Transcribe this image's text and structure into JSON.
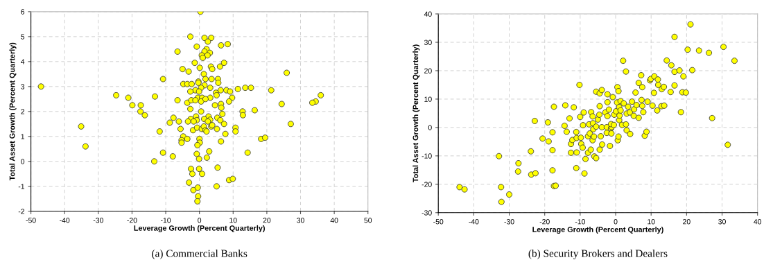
{
  "chart_data": [
    {
      "type": "scatter",
      "xlabel": "Leverage Growth (Percent Quarterly)",
      "ylabel": "Total Asset Growth (Percent Quarterly)",
      "annotations": [
        "(a) Commercial Banks"
      ],
      "xlim": [
        -50,
        50
      ],
      "ylim": [
        -2,
        6
      ],
      "xticks": [
        -50,
        -40,
        -30,
        -20,
        -10,
        0,
        10,
        20,
        30,
        40,
        50
      ],
      "yticks": [
        -2,
        -1,
        0,
        1,
        2,
        3,
        4,
        5,
        6
      ],
      "grid": true,
      "marker": "circle",
      "series": [
        {
          "color": "#ffff00",
          "x": [
            -47,
            0.3,
            -2.7,
            1.5,
            3.5,
            2.5,
            -0.8,
            6.4,
            8.4,
            -6.5,
            2.1,
            1.5,
            3.1,
            0.7,
            2.4,
            1.0,
            -1.4,
            7.3,
            3.4,
            6.1,
            0.1,
            3.8,
            -5.0,
            -3.2,
            1.3,
            -10.8,
            1.8,
            3.6,
            5.5,
            5.6,
            -0.3,
            25.9,
            -4.8,
            -3.6,
            -2.3,
            -0.3,
            1.5,
            0.5,
            3.2,
            -1.2,
            -0.1,
            6.3,
            8.0,
            9.1,
            11.4,
            13.6,
            15.3,
            21.3,
            -24.7,
            -21.1,
            -13.2,
            -2.7,
            4.9,
            5.1,
            -0.5,
            0.8,
            3.2,
            9.7,
            36.0,
            34.5,
            33.5,
            24.4,
            -19.9,
            -17.4,
            -6.5,
            -3.6,
            -2.4,
            -1.2,
            0.5,
            1.8,
            8.8,
            4.6,
            6.4,
            6.5,
            -2.7,
            -17.5,
            -16.2,
            16.4,
            12.8,
            12.9,
            0.5,
            -1.0,
            2.7,
            6.8,
            5.3,
            -7.7,
            -2.6,
            -0.8,
            1.4,
            3.2,
            6.2,
            -6.1,
            -8.8,
            -3.4,
            -1.7,
            2.5,
            7.3,
            27.1,
            -5.6,
            -1.9,
            -0.7,
            0.7,
            1.3,
            1.8,
            3.5,
            5.2,
            2.1,
            3.8,
            10.7,
            10.7,
            7.7,
            -11.8,
            -4.8,
            -3.6,
            -5.3,
            -5.3,
            0.0,
            0.1,
            -0.6,
            6.4,
            18.3,
            19.5,
            -35.1,
            -33.8,
            -10.8,
            14.3,
            -7.9,
            -13.4,
            -0.8,
            -0.1,
            2.9,
            2.2,
            -2.5,
            -2.1,
            -0.1,
            0.8,
            5.4,
            -3.1,
            8.8,
            9.9,
            -1.8,
            -0.5,
            5.1,
            -0.4,
            -0.6
          ],
          "values": [
            3.0,
            6.0,
            5.0,
            4.95,
            4.95,
            4.8,
            4.6,
            4.65,
            4.7,
            4.4,
            4.5,
            4.4,
            4.35,
            4.25,
            4.25,
            4.15,
            3.95,
            3.95,
            3.8,
            3.8,
            3.75,
            3.7,
            3.7,
            3.6,
            3.5,
            3.3,
            3.3,
            3.3,
            3.3,
            3.15,
            3.2,
            3.55,
            3.1,
            3.1,
            3.1,
            3.15,
            3.05,
            2.95,
            2.95,
            2.85,
            2.8,
            2.85,
            2.85,
            2.8,
            2.9,
            2.95,
            2.95,
            2.85,
            2.65,
            2.55,
            2.6,
            2.8,
            2.75,
            2.65,
            2.55,
            2.55,
            2.55,
            2.55,
            2.65,
            2.4,
            2.35,
            2.3,
            2.25,
            2.25,
            2.45,
            2.35,
            2.45,
            2.45,
            2.4,
            2.5,
            2.4,
            2.25,
            2.3,
            2.15,
            2.1,
            2.0,
            1.85,
            2.05,
            2.0,
            1.85,
            2.0,
            1.8,
            1.8,
            1.9,
            1.75,
            1.75,
            1.7,
            1.65,
            1.7,
            1.67,
            1.65,
            1.6,
            1.55,
            1.6,
            1.6,
            1.6,
            1.5,
            1.5,
            1.3,
            1.25,
            1.35,
            1.3,
            1.4,
            1.25,
            1.4,
            1.3,
            1.2,
            1.45,
            1.35,
            1.2,
            1.1,
            1.2,
            1.0,
            0.9,
            0.85,
            0.75,
            0.9,
            0.75,
            0.65,
            0.8,
            0.9,
            0.95,
            1.4,
            0.6,
            0.35,
            0.35,
            0.2,
            0.0,
            0.3,
            0.1,
            0.4,
            0.15,
            -0.3,
            -0.5,
            -0.3,
            -0.5,
            -0.25,
            -0.85,
            -0.75,
            -0.7,
            -1.15,
            -1.05,
            -1.0,
            -1.4,
            -1.6
          ]
        }
      ]
    },
    {
      "type": "scatter",
      "xlabel": "Leverage Growth (Percent Quarterly)",
      "ylabel": "Total Asset Growth (Percent Quarterly)",
      "annotations": [
        "(b) Security Brokers and Dealers"
      ],
      "xlim": [
        -50,
        40
      ],
      "ylim": [
        -30,
        40
      ],
      "xticks": [
        -50,
        -40,
        -30,
        -20,
        -10,
        0,
        10,
        20,
        30,
        40
      ],
      "yticks": [
        -30,
        -20,
        -10,
        0,
        10,
        20,
        30,
        40
      ],
      "grid": true,
      "marker": "circle",
      "series": [
        {
          "color": "#ffff00",
          "x": [
            -44.0,
            -42.6,
            -32.9,
            -32.3,
            -32.2,
            -30.0,
            -27.4,
            -27.5,
            -23.9,
            -23.8,
            -22.6,
            -22.8,
            -20.6,
            -19.1,
            -18.9,
            -17.8,
            -17.8,
            -17.8,
            -17.4,
            -17.4,
            -16.9,
            -14.4,
            -14.2,
            -13.8,
            -13.0,
            -12.6,
            -12.6,
            -12.2,
            -11.8,
            -11.1,
            -11.0,
            -11.0,
            -11.1,
            -10.2,
            -10.0,
            -9.8,
            -9.7,
            -9.3,
            -9.2,
            -9.0,
            -8.8,
            -8.5,
            -7.8,
            -7.8,
            -7.5,
            -7.3,
            -7.0,
            -6.9,
            -6.5,
            -6.5,
            -6.4,
            -6.3,
            -6.1,
            -6.0,
            -5.5,
            -5.5,
            -5.5,
            -5.0,
            -4.6,
            -4.5,
            -4.5,
            -4.5,
            -4.2,
            -3.9,
            -3.9,
            -3.8,
            -2.9,
            -2.5,
            -2.5,
            -2.3,
            -2.3,
            -2.3,
            -1.9,
            -1.6,
            -1.3,
            -1.2,
            -1.1,
            -1.3,
            -0.8,
            -0.5,
            -0.4,
            0.1,
            0.4,
            0.5,
            0.6,
            0.8,
            0.8,
            1.0,
            1.0,
            1.1,
            1.4,
            1.4,
            1.8,
            2.1,
            2.3,
            2.9,
            2.9,
            3.1,
            3.1,
            3.5,
            4.0,
            4.1,
            4.6,
            5.1,
            5.2,
            5.6,
            5.9,
            6.5,
            6.5,
            7.2,
            7.3,
            7.5,
            7.5,
            7.8,
            8.2,
            8.7,
            9.0,
            9.7,
            9.9,
            10.4,
            10.8,
            10.9,
            11.7,
            11.9,
            12.0,
            12.9,
            13.0,
            13.6,
            13.7,
            14.4,
            15.5,
            15.7,
            16.6,
            16.6,
            16.6,
            18.0,
            18.4,
            18.8,
            19.1,
            19.8,
            20.3,
            21.1,
            21.6,
            23.5,
            26.3,
            27.2,
            30.4,
            31.6,
            33.5
          ],
          "values": [
            -21.0,
            -21.8,
            -10.1,
            -21.0,
            -26.2,
            -23.6,
            -12.6,
            -15.5,
            -8.4,
            -16.6,
            -16.1,
            2.3,
            -3.9,
            1.8,
            -4.9,
            -1.7,
            -8.0,
            -15.1,
            7.3,
            -20.6,
            -20.5,
            0.6,
            7.8,
            -1.5,
            3.2,
            -5.8,
            -8.9,
            -4.4,
            7.1,
            -1.6,
            -3.7,
            -8.8,
            -14.3,
            15.0,
            3.7,
            -3.6,
            -5.8,
            -7.1,
            0.8,
            5.3,
            -16.2,
            -11.1,
            -8.9,
            -3.1,
            1.1,
            -2.1,
            -7.8,
            5.4,
            -4.5,
            3.9,
            1.5,
            -0.6,
            -3.2,
            -10.2,
            -10.8,
            12.6,
            0.3,
            2.8,
            4.5,
            7.5,
            12.0,
            -7.8,
            -3.1,
            13.2,
            0.1,
            -6.0,
            5.3,
            0.1,
            -1.9,
            11.7,
            8.9,
            4.0,
            6.3,
            -6.5,
            -0.3,
            -2.1,
            0.2,
            1.2,
            10.7,
            0.9,
            4.5,
            5.7,
            8.8,
            14.2,
            -4.5,
            -3.2,
            12.8,
            7.2,
            2.6,
            4.2,
            9.3,
            6.0,
            0.9,
            23.5,
            8.5,
            19.7,
            1.1,
            -1.0,
            4.9,
            7.3,
            5.3,
            -2.3,
            9.1,
            4.1,
            6.4,
            12.3,
            7.9,
            3.4,
            15.7,
            18.4,
            9.7,
            14.2,
            7.6,
            5.4,
            -2.9,
            -1.5,
            9.1,
            16.6,
            17.1,
            7.7,
            12.2,
            18.0,
            6.0,
            16.9,
            15.0,
            7.5,
            13.5,
            14.3,
            7.7,
            23.6,
            12.5,
            21.9,
            31.9,
            19.6,
            14.8,
            20.1,
            5.4,
            12.4,
            18.0,
            12.3,
            27.4,
            36.3,
            20.2,
            27.1,
            26.3,
            3.3,
            28.4,
            -6.1,
            23.5
          ]
        }
      ]
    }
  ]
}
